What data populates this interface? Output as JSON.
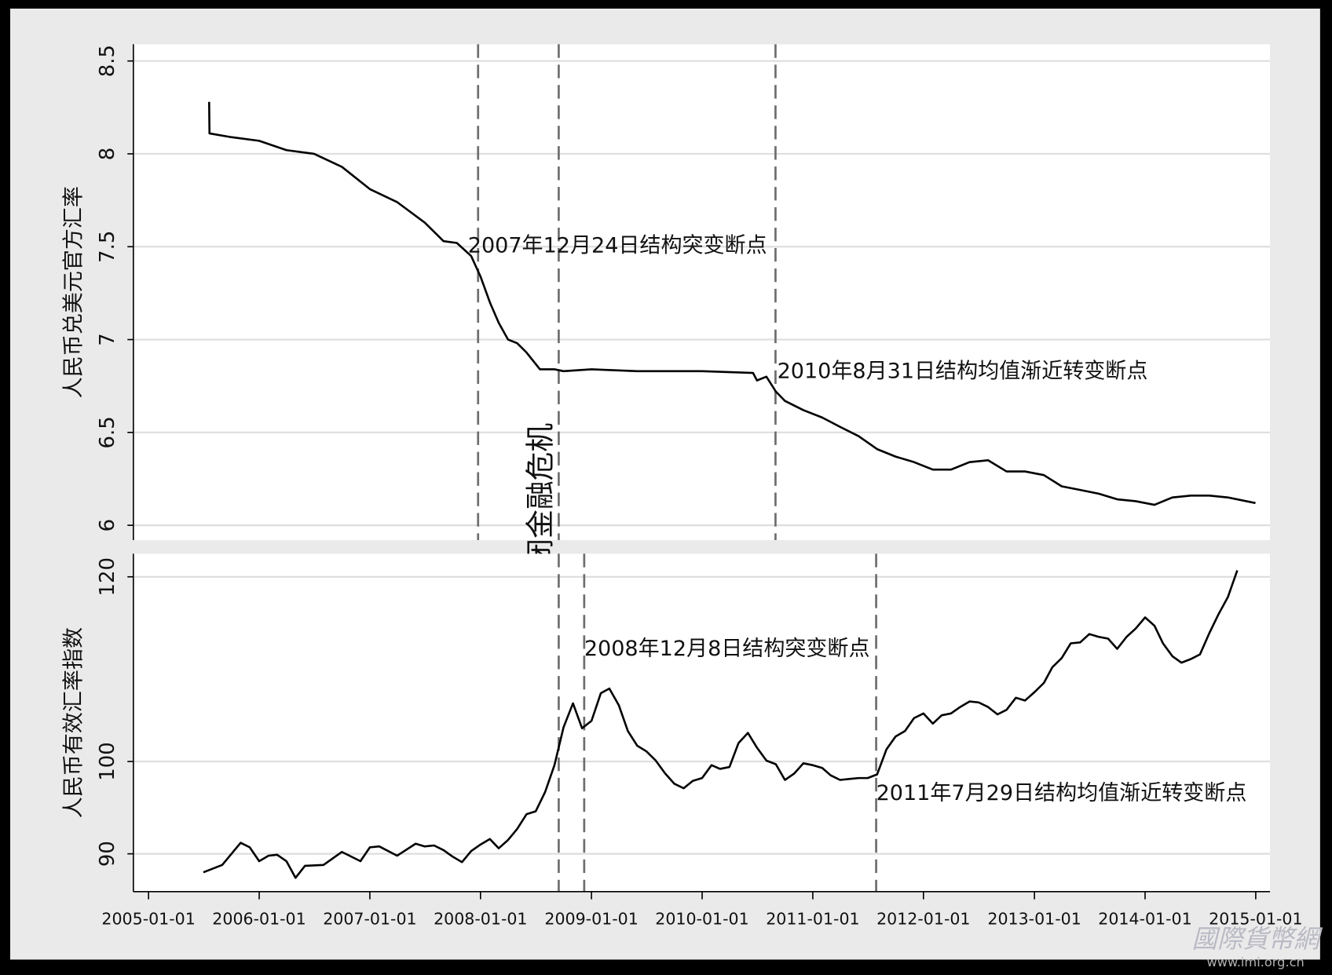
{
  "chart_data": [
    {
      "type": "line",
      "ylabel": "人民币兑美元官方汇率",
      "color": "#000000",
      "grid": true,
      "xlim": [
        "2004-11-12",
        "2015-02-17"
      ],
      "ylim": [
        5.92,
        8.59
      ],
      "yticks": [
        6,
        6.5,
        7,
        7.5,
        8,
        8.5
      ],
      "x": [
        "2005-07-20",
        "2005-07-21",
        "2005-10-01",
        "2006-01-01",
        "2006-04-01",
        "2006-07-01",
        "2006-10-01",
        "2007-01-01",
        "2007-04-01",
        "2007-07-01",
        "2007-09-01",
        "2007-10-15",
        "2007-12-01",
        "2008-01-01",
        "2008-02-01",
        "2008-03-01",
        "2008-04-01",
        "2008-05-01",
        "2008-06-01",
        "2008-07-15",
        "2008-09-01",
        "2008-10-01",
        "2009-01-01",
        "2009-06-01",
        "2010-01-01",
        "2010-06-18",
        "2010-07-01",
        "2010-08-01",
        "2010-09-01",
        "2010-10-01",
        "2010-12-01",
        "2011-02-01",
        "2011-04-01",
        "2011-06-01",
        "2011-08-01",
        "2011-10-01",
        "2011-12-01",
        "2012-02-01",
        "2012-04-01",
        "2012-06-01",
        "2012-08-01",
        "2012-10-01",
        "2012-12-01",
        "2013-02-01",
        "2013-04-01",
        "2013-06-01",
        "2013-08-01",
        "2013-10-01",
        "2013-12-01",
        "2014-02-01",
        "2014-04-01",
        "2014-06-01",
        "2014-08-01",
        "2014-10-01",
        "2014-12-31"
      ],
      "values": [
        8.28,
        8.11,
        8.09,
        8.07,
        8.02,
        8.0,
        7.93,
        7.81,
        7.74,
        7.63,
        7.53,
        7.52,
        7.45,
        7.34,
        7.2,
        7.09,
        7.0,
        6.98,
        6.93,
        6.84,
        6.84,
        6.83,
        6.84,
        6.83,
        6.83,
        6.82,
        6.78,
        6.8,
        6.72,
        6.67,
        6.62,
        6.58,
        6.53,
        6.48,
        6.41,
        6.37,
        6.34,
        6.3,
        6.3,
        6.34,
        6.35,
        6.29,
        6.29,
        6.27,
        6.21,
        6.19,
        6.17,
        6.14,
        6.13,
        6.11,
        6.15,
        6.16,
        6.16,
        6.15,
        6.12
      ],
      "vlines": [
        {
          "x": "2007-12-24",
          "label": "2007年12月24日结构突变断点"
        },
        {
          "x": "2008-09-15",
          "label": "美国雷曼倒闭金融危机"
        },
        {
          "x": "2010-08-31",
          "label": "2010年8月31日结构均值渐近转变断点"
        }
      ]
    },
    {
      "type": "line",
      "ylabel": "人民币有效汇率指数",
      "color": "#000000",
      "grid": true,
      "xlim": [
        "2004-11-12",
        "2015-02-17"
      ],
      "ylim": [
        85.9,
        122.5
      ],
      "yticks": [
        90,
        100,
        120
      ],
      "xticks": [
        "2005-01-01",
        "2006-01-01",
        "2007-01-01",
        "2008-01-01",
        "2009-01-01",
        "2010-01-01",
        "2011-01-01",
        "2012-01-01",
        "2013-01-01",
        "2014-01-01",
        "2015-01-01"
      ],
      "x": [
        "2005-07-01",
        "2005-09-01",
        "2005-11-01",
        "2005-12-01",
        "2006-01-01",
        "2006-02-01",
        "2006-03-01",
        "2006-04-01",
        "2006-05-01",
        "2006-06-01",
        "2006-08-01",
        "2006-10-01",
        "2006-12-01",
        "2007-01-01",
        "2007-02-01",
        "2007-04-01",
        "2007-06-01",
        "2007-07-01",
        "2007-08-01",
        "2007-09-01",
        "2007-10-01",
        "2007-11-01",
        "2007-12-01",
        "2008-01-01",
        "2008-02-01",
        "2008-03-01",
        "2008-04-01",
        "2008-05-01",
        "2008-06-01",
        "2008-07-01",
        "2008-08-01",
        "2008-09-01",
        "2008-10-01",
        "2008-11-01",
        "2008-12-01",
        "2009-01-01",
        "2009-02-01",
        "2009-03-01",
        "2009-04-01",
        "2009-05-01",
        "2009-06-01",
        "2009-07-01",
        "2009-08-01",
        "2009-09-01",
        "2009-10-01",
        "2009-11-01",
        "2009-12-01",
        "2010-01-01",
        "2010-02-01",
        "2010-03-01",
        "2010-04-01",
        "2010-05-01",
        "2010-06-01",
        "2010-07-01",
        "2010-08-01",
        "2010-09-01",
        "2010-10-01",
        "2010-11-01",
        "2010-12-01",
        "2011-01-01",
        "2011-02-01",
        "2011-03-01",
        "2011-04-01",
        "2011-05-01",
        "2011-06-01",
        "2011-07-01",
        "2011-08-01",
        "2011-09-01",
        "2011-10-01",
        "2011-11-01",
        "2011-12-01",
        "2012-01-01",
        "2012-02-01",
        "2012-03-01",
        "2012-04-01",
        "2012-05-01",
        "2012-06-01",
        "2012-07-01",
        "2012-08-01",
        "2012-09-01",
        "2012-10-01",
        "2012-11-01",
        "2012-12-01",
        "2013-01-01",
        "2013-02-01",
        "2013-03-01",
        "2013-04-01",
        "2013-05-01",
        "2013-06-01",
        "2013-07-01",
        "2013-08-01",
        "2013-09-01",
        "2013-10-01",
        "2013-11-01",
        "2013-12-01",
        "2014-01-01",
        "2014-02-01",
        "2014-03-01",
        "2014-04-01",
        "2014-05-01",
        "2014-06-01",
        "2014-07-01",
        "2014-08-01",
        "2014-09-01",
        "2014-10-01",
        "2014-11-01"
      ],
      "values": [
        88.0,
        88.8,
        91.2,
        90.7,
        89.2,
        89.8,
        89.9,
        89.2,
        87.4,
        88.7,
        88.8,
        90.2,
        89.2,
        90.7,
        90.8,
        89.8,
        91.1,
        90.8,
        90.9,
        90.4,
        89.7,
        89.1,
        90.3,
        91.0,
        91.6,
        90.6,
        91.5,
        92.7,
        94.3,
        94.6,
        96.7,
        99.6,
        103.7,
        106.3,
        103.6,
        104.4,
        107.4,
        107.9,
        106.1,
        103.3,
        101.7,
        101.1,
        100.1,
        98.7,
        97.6,
        97.1,
        97.9,
        98.2,
        99.6,
        99.2,
        99.4,
        102.0,
        103.1,
        101.5,
        100.1,
        99.7,
        98.0,
        98.7,
        99.8,
        99.6,
        99.3,
        98.5,
        98.0,
        98.1,
        98.2,
        98.2,
        98.6,
        101.3,
        102.7,
        103.3,
        104.7,
        105.2,
        104.1,
        105.0,
        105.2,
        105.9,
        106.5,
        106.4,
        105.9,
        105.1,
        105.6,
        106.9,
        106.6,
        107.5,
        108.5,
        110.2,
        111.2,
        112.8,
        112.9,
        113.8,
        113.5,
        113.3,
        112.2,
        113.5,
        114.4,
        115.6,
        114.7,
        112.8,
        111.4,
        110.7,
        111.1,
        111.6,
        113.9,
        116.0,
        117.8,
        120.7
      ],
      "vlines": [
        {
          "x": "2008-09-15"
        },
        {
          "x": "2008-12-08",
          "label": "2008年12月8日结构突变断点"
        },
        {
          "x": "2011-07-29",
          "label": "2011年7月29日结构均值渐近转变断点"
        }
      ]
    }
  ],
  "watermark": {
    "title": "國際貨幣網",
    "url": "www.imi.org.cn"
  }
}
